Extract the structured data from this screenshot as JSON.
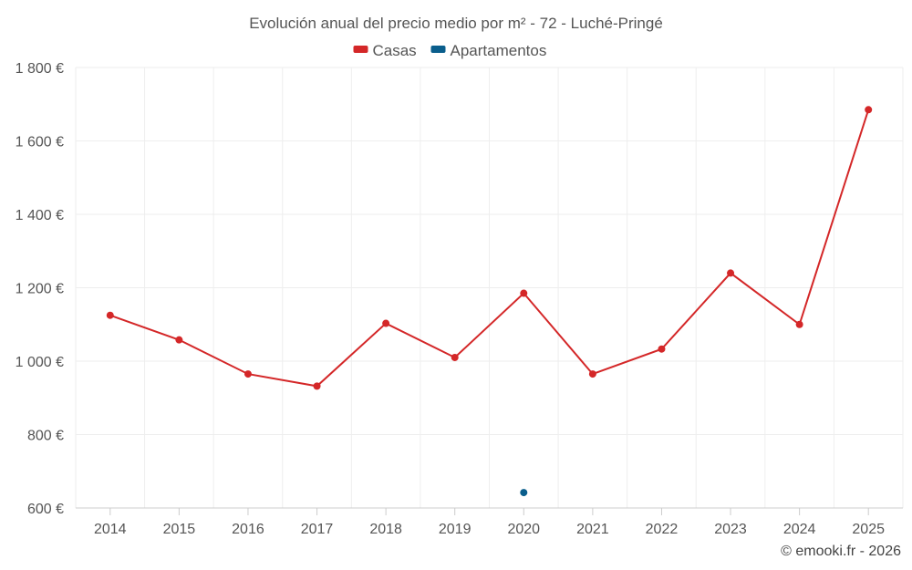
{
  "chart_data": {
    "type": "line",
    "title": "Evolución anual del precio medio por m² - 72 - Luché-Pringé",
    "categories": [
      "2014",
      "2015",
      "2016",
      "2017",
      "2018",
      "2019",
      "2020",
      "2021",
      "2022",
      "2023",
      "2024",
      "2025"
    ],
    "series": [
      {
        "name": "Casas",
        "color": "#d42728",
        "values": [
          1125,
          1058,
          965,
          932,
          1103,
          1010,
          1185,
          965,
          1033,
          1240,
          1100,
          1685
        ]
      },
      {
        "name": "Apartamentos",
        "color": "#0a5e8c",
        "values": [
          null,
          null,
          null,
          null,
          null,
          null,
          642,
          null,
          null,
          null,
          null,
          null
        ]
      }
    ],
    "ylim": [
      600,
      1800
    ],
    "yticks": [
      600,
      800,
      1000,
      1200,
      1400,
      1600,
      1800
    ],
    "ytick_labels": [
      "600 €",
      "800 €",
      "1 000 €",
      "1 200 €",
      "1 400 €",
      "1 600 €",
      "1 800 €"
    ],
    "xlabel": "",
    "ylabel": "",
    "legend_position": "top-center",
    "grid": true
  },
  "credit": "© emooki.fr - 2026"
}
